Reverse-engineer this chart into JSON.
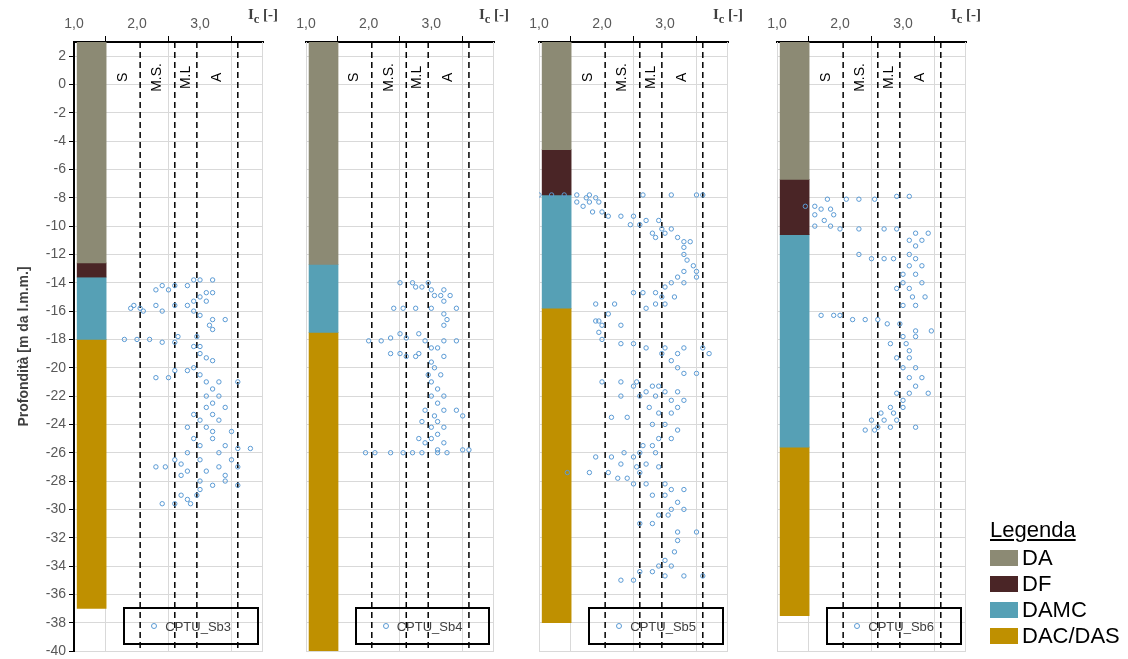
{
  "chart_data": [
    {
      "type": "scatter",
      "ylabel": "Profondità [m da l.m.m.]",
      "xlabel": "I$_{c}$ [-]",
      "xlim": [
        1,
        4
      ],
      "ylim": [
        -40,
        3
      ],
      "xticks": [
        {
          "value": 1,
          "label": "1,0"
        },
        {
          "value": 2,
          "label": "2,0"
        },
        {
          "value": 3,
          "label": "3,0"
        }
      ],
      "yticks": [
        -40,
        -38,
        -36,
        -34,
        -32,
        -30,
        -28,
        -26,
        -24,
        -22,
        -20,
        -18,
        -16,
        -14,
        -12,
        -10,
        -8,
        -6,
        -4,
        -2,
        0,
        2
      ],
      "grid": true,
      "legend": "bottom",
      "marker": "circle",
      "ref_lines": [
        {
          "axis": "x",
          "value": 2.05,
          "label": "S",
          "color": "#000000",
          "line_style": "dashed"
        },
        {
          "axis": "x",
          "value": 2.6,
          "label": "M.S.",
          "color": "#000000",
          "line_style": "dashed"
        },
        {
          "axis": "x",
          "value": 2.95,
          "label": "M.L",
          "color": "#000000",
          "line_style": "dashed"
        },
        {
          "axis": "x",
          "value": 3.6,
          "label": "A",
          "color": "#000000",
          "line_style": "dashed"
        }
      ],
      "series": [
        {
          "type": "bar",
          "color": "#8c8a74",
          "x": [
            1.28
          ],
          "base": [
            -12.6
          ],
          "values": [
            15.6
          ]
        },
        {
          "type": "bar",
          "color": "#4a2526",
          "x": [
            1.28
          ],
          "base": [
            -13.6
          ],
          "values": [
            1.0
          ]
        },
        {
          "type": "bar",
          "color": "#56a0b5",
          "x": [
            1.28
          ],
          "base": [
            -18
          ],
          "values": [
            4.4
          ]
        },
        {
          "type": "bar",
          "color": "#bf9000",
          "x": [
            1.28
          ],
          "base": [
            -37
          ],
          "values": [
            19
          ]
        },
        {
          "name": "CPTU_Sb3",
          "color": "#5b9bd5",
          "x": [
            2.9,
            3.0,
            3.2,
            2.4,
            2.6,
            2.8,
            2.3,
            2.5,
            3.1,
            3.2,
            3.0,
            2.9,
            3.1,
            1.95,
            2.3,
            2.6,
            2.8,
            1.9,
            2.05,
            2.1,
            2.4,
            2.9,
            3.0,
            3.2,
            3.4,
            3.15,
            3.2,
            2.65,
            2.95,
            1.8,
            2.0,
            2.2,
            2.4,
            2.6,
            2.9,
            3.0,
            3.0,
            3.1,
            3.2,
            2.9,
            2.6,
            2.8,
            3.0,
            2.3,
            2.5,
            3.1,
            3.3,
            3.6,
            3.2,
            3.1,
            3.3,
            3.2,
            3.1,
            3.4,
            2.9,
            3.2,
            3.0,
            3.3,
            2.8,
            3.1,
            3.2,
            3.5,
            2.9,
            3.2,
            3.0,
            3.4,
            3.6,
            3.8,
            2.8,
            3.3,
            2.6,
            3.0,
            3.5,
            2.7,
            2.3,
            2.45,
            3.3,
            3.6,
            2.8,
            3.1,
            2.7,
            3.4,
            3.0,
            3.4,
            3.2,
            3.6,
            3.0,
            2.7,
            2.95,
            2.8,
            2.4,
            2.6,
            2.85
          ],
          "values": [
            -13.8,
            -13.8,
            -13.8,
            -14.2,
            -14.2,
            -14.2,
            -14.5,
            -14.5,
            -14.7,
            -14.7,
            -15.0,
            -15.3,
            -15.3,
            -15.6,
            -15.6,
            -15.6,
            -15.6,
            -15.8,
            -15.8,
            -16.0,
            -16.0,
            -16.0,
            -16.3,
            -16.6,
            -16.6,
            -17.0,
            -17.3,
            -17.8,
            -17.8,
            -18.0,
            -18.0,
            -18.0,
            -18.2,
            -18.2,
            -18.5,
            -18.5,
            -19.0,
            -19.3,
            -19.5,
            -20.0,
            -20.2,
            -20.2,
            -20.5,
            -20.7,
            -20.7,
            -21.0,
            -21.0,
            -21.0,
            -21.5,
            -22.0,
            -22.0,
            -22.5,
            -22.8,
            -22.8,
            -23.3,
            -23.3,
            -23.7,
            -23.7,
            -24.2,
            -24.2,
            -24.5,
            -24.5,
            -25.0,
            -25.0,
            -25.5,
            -25.5,
            -25.7,
            -25.7,
            -26.0,
            -26.0,
            -26.5,
            -26.5,
            -26.5,
            -26.8,
            -27.0,
            -27.0,
            -27.0,
            -27.0,
            -27.3,
            -27.3,
            -27.6,
            -27.6,
            -28.0,
            -28.0,
            -28.3,
            -28.3,
            -28.6,
            -29.0,
            -29.0,
            -29.3,
            -29.6,
            -29.6,
            -29.6
          ]
        }
      ]
    },
    {
      "type": "scatter",
      "xlabel": "I$_{c}$ [-]",
      "xlim": [
        1,
        4
      ],
      "ylim": [
        -40,
        3
      ],
      "tick_labels": "x",
      "xticks": [
        {
          "value": 1,
          "label": "1,0"
        },
        {
          "value": 2,
          "label": "2,0"
        },
        {
          "value": 3,
          "label": "3,0"
        }
      ],
      "yticks": [
        -40,
        -38,
        -36,
        -34,
        -32,
        -30,
        -28,
        -26,
        -24,
        -22,
        -20,
        -18,
        -16,
        -14,
        -12,
        -10,
        -8,
        -6,
        -4,
        -2,
        0,
        2
      ],
      "grid": true,
      "legend": "bottom",
      "marker": "circle",
      "ref_lines": [
        {
          "axis": "x",
          "value": 2.05,
          "label": "S",
          "color": "#000000",
          "line_style": "dashed"
        },
        {
          "axis": "x",
          "value": 2.6,
          "label": "M.S.",
          "color": "#000000",
          "line_style": "dashed"
        },
        {
          "axis": "x",
          "value": 2.95,
          "label": "M.L",
          "color": "#000000",
          "line_style": "dashed"
        },
        {
          "axis": "x",
          "value": 3.6,
          "label": "A",
          "color": "#000000",
          "line_style": "dashed"
        }
      ],
      "series": [
        {
          "type": "bar",
          "color": "#8c8a74",
          "x": [
            1.28
          ],
          "base": [
            -12.7
          ],
          "values": [
            15.7
          ]
        },
        {
          "type": "bar",
          "color": "#56a0b5",
          "x": [
            1.28
          ],
          "base": [
            -17.5
          ],
          "values": [
            4.8
          ]
        },
        {
          "type": "bar",
          "color": "#bf9000",
          "x": [
            1.28
          ],
          "base": [
            -40
          ],
          "values": [
            22.5
          ]
        },
        {
          "name": "CPTU_Sb4",
          "color": "#5b9bd5",
          "x": [
            2.5,
            2.7,
            2.95,
            2.75,
            2.85,
            3.0,
            3.2,
            3.05,
            3.15,
            3.3,
            3.2,
            2.4,
            2.55,
            2.75,
            3.0,
            3.4,
            3.2,
            3.25,
            3.2,
            2.5,
            2.8,
            2.35,
            2.6,
            2.0,
            2.2,
            2.9,
            3.2,
            3.4,
            3.0,
            3.1,
            2.35,
            2.5,
            2.8,
            2.6,
            2.75,
            3.2,
            3.0,
            3.05,
            2.95,
            3.15,
            3.0,
            3.1,
            3.0,
            3.2,
            3.1,
            2.9,
            3.2,
            3.4,
            3.05,
            3.5,
            2.85,
            3.1,
            3.0,
            3.2,
            3.1,
            2.8,
            3.0,
            2.9,
            3.2,
            3.1,
            3.5,
            3.6,
            1.95,
            2.1,
            2.35,
            2.55,
            2.7,
            2.85,
            3.1,
            3.25
          ],
          "values": [
            -14.0,
            -14.0,
            -14.0,
            -14.3,
            -14.3,
            -14.5,
            -14.5,
            -14.9,
            -14.9,
            -14.9,
            -15.3,
            -15.8,
            -15.8,
            -15.8,
            -15.8,
            -15.8,
            -16.2,
            -16.6,
            -17.0,
            -17.6,
            -17.6,
            -17.9,
            -17.9,
            -18.1,
            -18.1,
            -18.1,
            -18.1,
            -18.1,
            -18.6,
            -18.6,
            -19.0,
            -19.0,
            -19.0,
            -19.2,
            -19.2,
            -19.2,
            -19.6,
            -20.0,
            -20.5,
            -20.5,
            -21.0,
            -21.5,
            -22.0,
            -22.0,
            -22.5,
            -23.0,
            -23.0,
            -23.0,
            -23.4,
            -23.4,
            -23.8,
            -23.8,
            -24.2,
            -24.2,
            -24.7,
            -25.0,
            -25.0,
            -25.3,
            -25.3,
            -25.8,
            -25.8,
            -25.8,
            -26.0,
            -26.0,
            -26.0,
            -26.0,
            -26.0,
            -26.0,
            -26.0,
            -26.0
          ]
        }
      ]
    },
    {
      "type": "scatter",
      "xlabel": "I$_{c}$ [-]",
      "xlim": [
        1,
        4
      ],
      "ylim": [
        -40,
        3
      ],
      "tick_labels": "x",
      "xticks": [
        {
          "value": 1,
          "label": "1,0"
        },
        {
          "value": 2,
          "label": "2,0"
        },
        {
          "value": 3,
          "label": "3,0"
        }
      ],
      "yticks": [
        -40,
        -38,
        -36,
        -34,
        -32,
        -30,
        -28,
        -26,
        -24,
        -22,
        -20,
        -18,
        -16,
        -14,
        -12,
        -10,
        -8,
        -6,
        -4,
        -2,
        0,
        2
      ],
      "grid": true,
      "legend": "bottom",
      "marker": "circle",
      "ref_lines": [
        {
          "axis": "x",
          "value": 2.05,
          "label": "S",
          "color": "#000000",
          "line_style": "dashed"
        },
        {
          "axis": "x",
          "value": 2.6,
          "label": "M.S.",
          "color": "#000000",
          "line_style": "dashed"
        },
        {
          "axis": "x",
          "value": 2.95,
          "label": "M.L",
          "color": "#000000",
          "line_style": "dashed"
        },
        {
          "axis": "x",
          "value": 3.6,
          "label": "A",
          "color": "#000000",
          "line_style": "dashed"
        }
      ],
      "series": [
        {
          "type": "bar",
          "color": "#8c8a74",
          "x": [
            1.28
          ],
          "base": [
            -4.6
          ],
          "values": [
            7.6
          ]
        },
        {
          "type": "bar",
          "color": "#4a2526",
          "x": [
            1.28
          ],
          "base": [
            -7.8
          ],
          "values": [
            3.2
          ]
        },
        {
          "type": "bar",
          "color": "#56a0b5",
          "x": [
            1.28
          ],
          "base": [
            -15.8
          ],
          "values": [
            8.0
          ]
        },
        {
          "type": "bar",
          "color": "#bf9000",
          "x": [
            1.28
          ],
          "base": [
            -38
          ],
          "values": [
            22.2
          ]
        },
        {
          "name": "CPTU_Sb5",
          "color": "#5b9bd5",
          "x": [
            1.0,
            1.2,
            1.4,
            1.6,
            1.8,
            2.65,
            3.1,
            3.5,
            3.6,
            1.75,
            1.9,
            1.6,
            1.8,
            1.95,
            1.7,
            1.85,
            2.0,
            2.1,
            2.3,
            2.5,
            2.7,
            2.9,
            2.45,
            2.6,
            2.95,
            3.1,
            2.8,
            3.0,
            2.85,
            3.2,
            3.3,
            3.4,
            3.3,
            3.3,
            3.35,
            3.45,
            3.3,
            3.5,
            3.2,
            3.5,
            3.1,
            3.3,
            3.0,
            2.5,
            2.65,
            2.85,
            2.95,
            3.15,
            2.85,
            3.0,
            1.9,
            2.2,
            2.7,
            2.1,
            1.9,
            1.95,
            2.0,
            2.3,
            1.95,
            2.0,
            2.3,
            2.5,
            2.7,
            3.0,
            3.3,
            3.6,
            2.95,
            3.2,
            3.7,
            3.1,
            3.2,
            3.3,
            3.5,
            2.0,
            2.3,
            2.55,
            2.5,
            2.8,
            2.9,
            2.7,
            3.0,
            3.2,
            2.3,
            2.6,
            2.85,
            3.1,
            3.3,
            2.75,
            3.2,
            2.9,
            3.1,
            2.15,
            2.4,
            2.8,
            3.0,
            3.2,
            2.9,
            3.1,
            2.65,
            2.8,
            2.35,
            2.6,
            2.85,
            1.9,
            2.15,
            2.5,
            2.3,
            2.7,
            2.55,
            2.9,
            1.45,
            1.8,
            2.1,
            2.6,
            2.25,
            2.4,
            2.5,
            2.7,
            3.0,
            3.1,
            3.3,
            2.8,
            3.0,
            3.2,
            3.1,
            3.3,
            2.9,
            3.05,
            2.6,
            2.8,
            3.2,
            3.5,
            3.2,
            3.15,
            3.0,
            3.1,
            2.9,
            2.6,
            2.8,
            3.0,
            3.3,
            3.6,
            2.3,
            2.5
          ],
          "values": [
            -7.8,
            -7.8,
            -7.8,
            -7.8,
            -7.8,
            -7.8,
            -7.8,
            -7.8,
            -7.8,
            -8.0,
            -8.0,
            -8.3,
            -8.3,
            -8.3,
            -8.6,
            -9.0,
            -9.0,
            -9.3,
            -9.3,
            -9.3,
            -9.6,
            -9.6,
            -9.9,
            -9.9,
            -10.2,
            -10.2,
            -10.5,
            -10.5,
            -10.8,
            -10.8,
            -11.1,
            -11.1,
            -11.5,
            -12.0,
            -12.4,
            -12.8,
            -13.2,
            -13.2,
            -13.6,
            -13.6,
            -14.0,
            -14.0,
            -14.3,
            -14.7,
            -14.7,
            -14.7,
            -15.0,
            -15.0,
            -15.5,
            -15.5,
            -15.5,
            -15.5,
            -15.8,
            -16.2,
            -16.7,
            -16.7,
            -17.0,
            -17.0,
            -17.5,
            -18.0,
            -18.3,
            -18.3,
            -18.6,
            -18.6,
            -18.6,
            -18.6,
            -19.0,
            -19.0,
            -19.0,
            -19.5,
            -20.0,
            -20.4,
            -20.4,
            -21.0,
            -21.0,
            -21.0,
            -21.3,
            -21.3,
            -21.3,
            -21.7,
            -21.7,
            -21.7,
            -22.0,
            -22.0,
            -22.0,
            -22.3,
            -22.3,
            -22.8,
            -22.8,
            -23.2,
            -23.2,
            -23.5,
            -23.5,
            -24.0,
            -24.0,
            -24.4,
            -25.0,
            -25.0,
            -25.5,
            -25.5,
            -26.0,
            -26.0,
            -26.0,
            -26.3,
            -26.3,
            -26.3,
            -26.8,
            -26.8,
            -27.0,
            -27.0,
            -27.4,
            -27.4,
            -27.4,
            -27.4,
            -27.8,
            -27.8,
            -28.2,
            -28.2,
            -28.2,
            -28.6,
            -28.6,
            -29.0,
            -29.0,
            -29.5,
            -30.0,
            -30.0,
            -30.4,
            -30.4,
            -31.0,
            -31.0,
            -31.6,
            -31.6,
            -32.2,
            -33.0,
            -33.6,
            -34.0,
            -34.0,
            -34.4,
            -34.4,
            -34.7,
            -34.7,
            -34.7,
            -35.0,
            -35.0
          ]
        }
      ]
    },
    {
      "type": "scatter",
      "xlabel": "I$_{c}$ [-]",
      "xlim": [
        1,
        4
      ],
      "ylim": [
        -40,
        3
      ],
      "tick_labels": "x",
      "legend_title": "Legenda",
      "xticks": [
        {
          "value": 1,
          "label": "1,0"
        },
        {
          "value": 2,
          "label": "2,0"
        },
        {
          "value": 3,
          "label": "3,0"
        }
      ],
      "yticks": [
        -40,
        -38,
        -36,
        -34,
        -32,
        -30,
        -28,
        -26,
        -24,
        -22,
        -20,
        -18,
        -16,
        -14,
        -12,
        -10,
        -8,
        -6,
        -4,
        -2,
        0,
        2
      ],
      "grid": true,
      "legend": "bottom",
      "marker": "circle",
      "ref_lines": [
        {
          "axis": "x",
          "value": 2.05,
          "label": "S",
          "color": "#000000",
          "line_style": "dashed"
        },
        {
          "axis": "x",
          "value": 2.6,
          "label": "M.S.",
          "color": "#000000",
          "line_style": "dashed"
        },
        {
          "axis": "x",
          "value": 2.95,
          "label": "M.L",
          "color": "#000000",
          "line_style": "dashed"
        },
        {
          "axis": "x",
          "value": 3.6,
          "label": "A",
          "color": "#000000",
          "line_style": "dashed"
        }
      ],
      "series": [
        {
          "type": "bar",
          "name": "DA",
          "color": "#8c8a74",
          "x": [
            1.28
          ],
          "base": [
            -6.7
          ],
          "values": [
            9.7
          ]
        },
        {
          "type": "bar",
          "name": "DF",
          "color": "#4a2526",
          "x": [
            1.28
          ],
          "base": [
            -10.6
          ],
          "values": [
            3.9
          ]
        },
        {
          "type": "bar",
          "name": "DAMC",
          "color": "#56a0b5",
          "x": [
            1.28
          ],
          "base": [
            -25.6
          ],
          "values": [
            15.0
          ]
        },
        {
          "type": "bar",
          "name": "DAC/DAS",
          "color": "#bf9000",
          "x": [
            1.28
          ],
          "base": [
            -37.5
          ],
          "values": [
            11.9
          ]
        },
        {
          "name": "CPTU_Sb6",
          "color": "#5b9bd5",
          "x": [
            2.9,
            3.1,
            1.8,
            2.1,
            2.3,
            2.55,
            1.45,
            1.6,
            1.7,
            1.85,
            1.6,
            1.9,
            1.75,
            1.6,
            1.85,
            2.0,
            2.3,
            2.7,
            2.9,
            3.2,
            3.4,
            3.1,
            3.3,
            3.2,
            2.3,
            3.1,
            2.5,
            2.7,
            2.85,
            3.2,
            3.1,
            3.3,
            3.0,
            3.2,
            3.3,
            3.0,
            2.9,
            3.1,
            3.15,
            3.35,
            3.0,
            3.2,
            1.7,
            1.9,
            2.0,
            2.2,
            2.4,
            2.6,
            2.75,
            2.95,
            3.2,
            3.45,
            3.0,
            3.2,
            2.8,
            3.05,
            3.1,
            2.9,
            3.1,
            3.0,
            3.2,
            3.1,
            3.3,
            3.2,
            2.9,
            3.1,
            3.4,
            3.0,
            2.8,
            3.0,
            2.65,
            2.85,
            2.5,
            2.7,
            2.9,
            2.6,
            2.8,
            3.2,
            2.4,
            2.55
          ],
          "values": [
            -7.9,
            -7.9,
            -8.1,
            -8.1,
            -8.1,
            -8.1,
            -8.6,
            -8.6,
            -8.8,
            -8.8,
            -9.2,
            -9.2,
            -9.6,
            -10.0,
            -10.0,
            -10.2,
            -10.2,
            -10.2,
            -10.2,
            -10.5,
            -10.5,
            -11.0,
            -11.0,
            -11.4,
            -12.0,
            -12.0,
            -12.3,
            -12.3,
            -12.3,
            -12.3,
            -12.8,
            -12.8,
            -13.4,
            -13.4,
            -14.0,
            -14.0,
            -14.4,
            -14.4,
            -15.0,
            -15.0,
            -15.6,
            -15.6,
            -16.3,
            -16.3,
            -16.3,
            -16.6,
            -16.6,
            -16.6,
            -16.9,
            -16.9,
            -17.4,
            -17.4,
            -17.8,
            -17.8,
            -18.3,
            -18.3,
            -18.8,
            -19.3,
            -19.3,
            -20.0,
            -20.0,
            -20.7,
            -20.7,
            -21.3,
            -21.8,
            -21.8,
            -21.8,
            -22.3,
            -22.8,
            -22.8,
            -23.2,
            -23.2,
            -23.7,
            -23.7,
            -23.7,
            -24.2,
            -24.2,
            -24.2,
            -24.4,
            -24.4
          ]
        }
      ]
    }
  ]
}
